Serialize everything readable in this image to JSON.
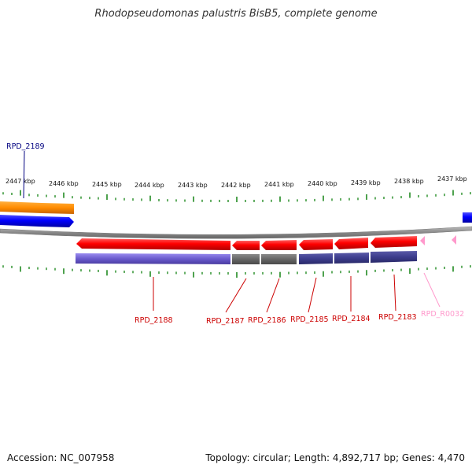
{
  "title": "Rhodopseudomonas palustris BisB5, complete genome",
  "footer": {
    "accession": "Accession: NC_007958",
    "summary": "Topology: circular; Length: 4,892,717 bp; Genes: 4,470"
  },
  "scale_labels": [
    "2447 kbp",
    "2446 kbp",
    "2445 kbp",
    "2444 kbp",
    "2443 kbp",
    "2442 kbp",
    "2441 kbp",
    "2440 kbp",
    "2439 kbp",
    "2438 kbp",
    "2437 kbp"
  ],
  "gene_labels": {
    "rpd_2189": "RPD_2189",
    "rpd_2188": "RPD_2188",
    "rpd_2187": "RPD_2187",
    "rpd_2186": "RPD_2186",
    "rpd_2185": "RPD_2185",
    "rpd_2184": "RPD_2184",
    "rpd_2183": "RPD_2183",
    "rpd_r0032": "RPD_R0032"
  },
  "colors": {
    "forward_gene": "#0000ff",
    "reverse_gene": "#ff0000",
    "orange_feature": "#ff8c00",
    "rna_gene": "#ff99cc",
    "backbone": "#888888",
    "ticks": "#228b22",
    "cog_purple": "#6a5acd",
    "cog_gray": "#666666",
    "cog_navy": "#3c3c8c"
  }
}
